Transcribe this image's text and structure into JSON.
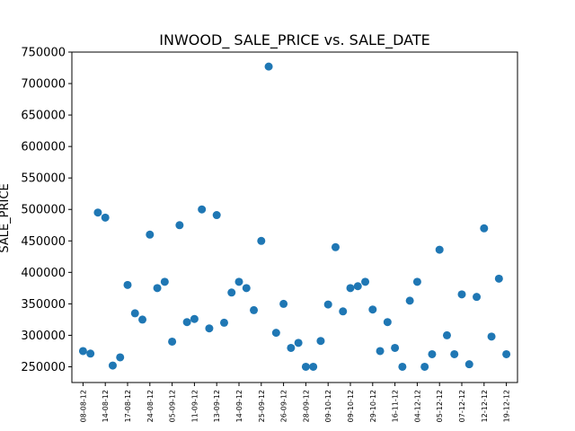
{
  "chart_data": {
    "type": "scatter",
    "title": "INWOOD_ SALE_PRICE vs. SALE_DATE",
    "xlabel": "",
    "ylabel": "SALE_PRICE",
    "ylim": [
      225000,
      750000
    ],
    "grid": false,
    "color": "#1f77b4",
    "yticks": [
      250000,
      300000,
      350000,
      400000,
      450000,
      500000,
      550000,
      600000,
      650000,
      700000,
      750000
    ],
    "xtick_labels": [
      "08-08-12",
      "14-08-12",
      "17-08-12",
      "24-08-12",
      "05-09-12",
      "11-09-12",
      "13-09-12",
      "14-09-12",
      "25-09-12",
      "26-09-12",
      "28-09-12",
      "09-10-12",
      "09-10-12",
      "29-10-12",
      "16-11-12",
      "04-12-12",
      "05-12-12",
      "07-12-12",
      "12-12-12",
      "19-12-12"
    ],
    "points": [
      {
        "x": 0,
        "y": 275000
      },
      {
        "x": 1,
        "y": 271000
      },
      {
        "x": 2,
        "y": 495000
      },
      {
        "x": 3,
        "y": 487000
      },
      {
        "x": 4,
        "y": 252000
      },
      {
        "x": 5,
        "y": 265000
      },
      {
        "x": 6,
        "y": 380000
      },
      {
        "x": 7,
        "y": 335000
      },
      {
        "x": 8,
        "y": 325000
      },
      {
        "x": 9,
        "y": 460000
      },
      {
        "x": 10,
        "y": 375000
      },
      {
        "x": 11,
        "y": 385000
      },
      {
        "x": 12,
        "y": 290000
      },
      {
        "x": 13,
        "y": 475000
      },
      {
        "x": 14,
        "y": 321000
      },
      {
        "x": 15,
        "y": 326000
      },
      {
        "x": 16,
        "y": 500000
      },
      {
        "x": 17,
        "y": 311000
      },
      {
        "x": 18,
        "y": 491000
      },
      {
        "x": 19,
        "y": 320000
      },
      {
        "x": 20,
        "y": 368000
      },
      {
        "x": 21,
        "y": 385000
      },
      {
        "x": 22,
        "y": 375000
      },
      {
        "x": 23,
        "y": 340000
      },
      {
        "x": 24,
        "y": 450000
      },
      {
        "x": 25,
        "y": 727000
      },
      {
        "x": 26,
        "y": 304000
      },
      {
        "x": 27,
        "y": 350000
      },
      {
        "x": 28,
        "y": 280000
      },
      {
        "x": 29,
        "y": 288000
      },
      {
        "x": 30,
        "y": 250000
      },
      {
        "x": 31,
        "y": 250000
      },
      {
        "x": 32,
        "y": 291000
      },
      {
        "x": 33,
        "y": 349000
      },
      {
        "x": 34,
        "y": 440000
      },
      {
        "x": 35,
        "y": 338000
      },
      {
        "x": 36,
        "y": 375000
      },
      {
        "x": 37,
        "y": 378000
      },
      {
        "x": 38,
        "y": 385000
      },
      {
        "x": 39,
        "y": 341000
      },
      {
        "x": 40,
        "y": 275000
      },
      {
        "x": 41,
        "y": 321000
      },
      {
        "x": 42,
        "y": 280000
      },
      {
        "x": 43,
        "y": 250000
      },
      {
        "x": 44,
        "y": 355000
      },
      {
        "x": 45,
        "y": 385000
      },
      {
        "x": 46,
        "y": 250000
      },
      {
        "x": 47,
        "y": 270000
      },
      {
        "x": 48,
        "y": 436000
      },
      {
        "x": 49,
        "y": 300000
      },
      {
        "x": 50,
        "y": 270000
      },
      {
        "x": 51,
        "y": 365000
      },
      {
        "x": 52,
        "y": 254000
      },
      {
        "x": 53,
        "y": 361000
      },
      {
        "x": 54,
        "y": 470000
      },
      {
        "x": 55,
        "y": 298000
      },
      {
        "x": 56,
        "y": 390000
      },
      {
        "x": 57,
        "y": 270000
      }
    ],
    "xtick_positions": [
      0,
      3,
      6,
      9,
      12,
      15,
      18,
      21,
      24,
      27,
      30,
      33,
      36,
      39,
      42,
      45,
      48,
      51,
      54,
      57
    ]
  }
}
